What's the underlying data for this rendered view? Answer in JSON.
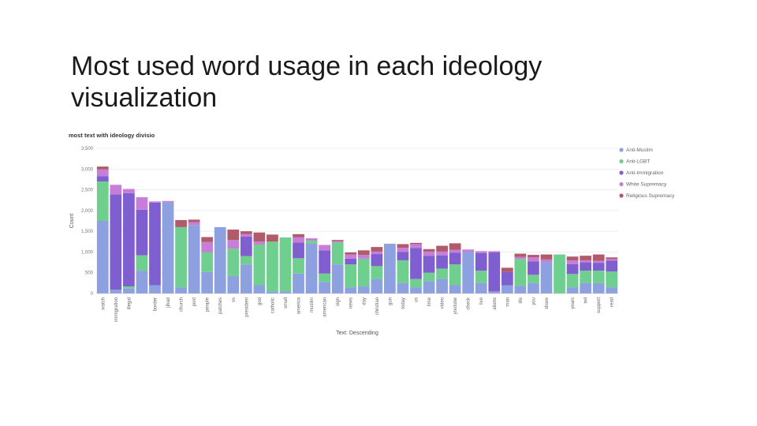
{
  "slide": {
    "title": "Most used word usage in each ideology visualization"
  },
  "chart_data": {
    "type": "bar",
    "stacked": true,
    "title": "most text with ideology divisio",
    "xlabel": "Text: Descending",
    "ylabel": "Count",
    "ylim": [
      0,
      3500
    ],
    "yticks": [
      0,
      500,
      1000,
      1500,
      2000,
      2500,
      3000,
      3500
    ],
    "ytick_labels": [
      "0",
      "500",
      "1,000",
      "1,500",
      "2,000",
      "2,500",
      "3,000",
      "3,500"
    ],
    "grid": true,
    "legend": "right",
    "categories": [
      "watch",
      "immigration",
      "illegal",
      "",
      "border",
      "jihad",
      "church",
      "post",
      "people",
      "patches",
      "vs",
      "president",
      "god",
      "catholic",
      "small",
      "america",
      "muslim",
      "american",
      "sign",
      "news",
      "day",
      "christian",
      "gun",
      "today",
      "us",
      "time",
      "video",
      "youtube",
      "check",
      "live",
      "aliens",
      "man",
      "life",
      "you",
      "share",
      "",
      "years",
      "tell",
      "support",
      "read"
    ],
    "colors": [
      "#8da0e0",
      "#6fcf8f",
      "#7f5fd0",
      "#c77ed9",
      "#b05a6a"
    ],
    "series": [
      {
        "name": "Anti-Muslim",
        "values": [
          1750,
          90,
          120,
          550,
          200,
          2200,
          150,
          1650,
          520,
          1600,
          420,
          700,
          200,
          50,
          50,
          480,
          1200,
          280,
          700,
          150,
          170,
          350,
          1200,
          250,
          150,
          300,
          350,
          200,
          1000,
          250,
          50,
          200,
          180,
          250,
          750,
          0,
          150,
          250,
          250,
          150
        ]
      },
      {
        "name": "Anti-LGBT",
        "values": [
          950,
          0,
          50,
          370,
          0,
          0,
          1450,
          0,
          470,
          0,
          660,
          200,
          980,
          1200,
          1300,
          370,
          70,
          200,
          530,
          550,
          670,
          310,
          0,
          550,
          200,
          200,
          250,
          500,
          0,
          300,
          0,
          0,
          650,
          200,
          0,
          940,
          320,
          300,
          300,
          380
        ]
      },
      {
        "name": "Anti-Immigration",
        "values": [
          130,
          2300,
          2250,
          1100,
          1990,
          0,
          0,
          0,
          0,
          0,
          0,
          470,
          0,
          0,
          0,
          380,
          0,
          560,
          0,
          140,
          0,
          290,
          0,
          200,
          750,
          410,
          320,
          280,
          0,
          420,
          940,
          320,
          0,
          320,
          0,
          0,
          240,
          200,
          190,
          260
        ]
      },
      {
        "name": "White Supremacy",
        "values": [
          160,
          230,
          100,
          300,
          30,
          30,
          0,
          70,
          250,
          0,
          210,
          60,
          70,
          0,
          0,
          130,
          60,
          130,
          30,
          100,
          90,
          60,
          0,
          100,
          90,
          100,
          90,
          70,
          60,
          50,
          30,
          0,
          50,
          100,
          70,
          0,
          90,
          50,
          50,
          40
        ]
      },
      {
        "name": "Religious Supremacy",
        "values": [
          70,
          0,
          0,
          0,
          0,
          0,
          170,
          60,
          120,
          0,
          250,
          70,
          220,
          170,
          0,
          70,
          0,
          0,
          30,
          50,
          110,
          110,
          0,
          90,
          30,
          60,
          140,
          160,
          0,
          0,
          0,
          100,
          80,
          60,
          120,
          0,
          90,
          110,
          150,
          40
        ]
      }
    ]
  }
}
